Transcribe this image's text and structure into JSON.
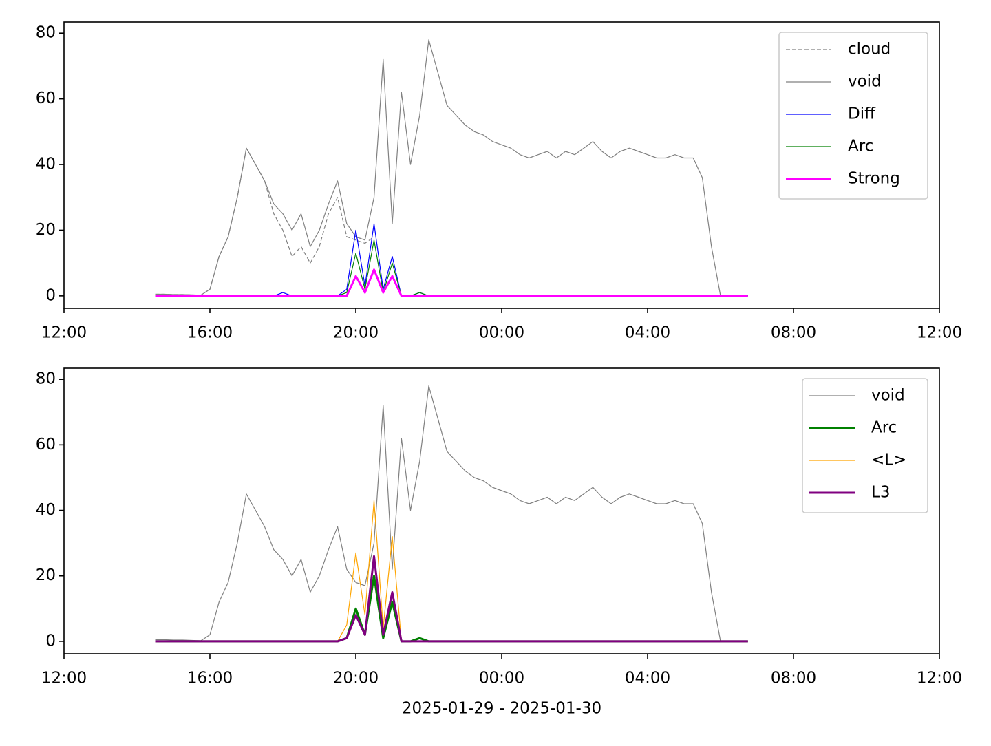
{
  "chart_data": [
    {
      "type": "line",
      "x": [
        14.5,
        14.75,
        15,
        15.25,
        15.5,
        15.75,
        16,
        16.25,
        16.5,
        16.75,
        17,
        17.25,
        17.5,
        17.75,
        18,
        18.25,
        18.5,
        18.75,
        19,
        19.25,
        19.5,
        19.75,
        20,
        20.25,
        20.5,
        20.75,
        21,
        21.25,
        21.5,
        21.75,
        22,
        22.25,
        22.5,
        22.75,
        23,
        23.25,
        23.5,
        23.75,
        24,
        24.25,
        24.5,
        24.75,
        25,
        25.25,
        25.5,
        25.75,
        26,
        26.25,
        26.5,
        26.75,
        27,
        27.25,
        27.5,
        27.75,
        28,
        28.25,
        28.5,
        28.75,
        29,
        29.25,
        29.5,
        29.75,
        30,
        30.25,
        30.5,
        30.75
      ],
      "xlim": [
        12,
        36
      ],
      "xticks": [
        {
          "value": 12,
          "label": "12:00"
        },
        {
          "value": 16,
          "label": "16:00"
        },
        {
          "value": 20,
          "label": "20:00"
        },
        {
          "value": 24,
          "label": "00:00"
        },
        {
          "value": 28,
          "label": "04:00"
        },
        {
          "value": 32,
          "label": "08:00"
        },
        {
          "value": 36,
          "label": "12:00"
        }
      ],
      "ylim": [
        -3.8,
        83.4
      ],
      "yticks": [
        0,
        20,
        40,
        60,
        80
      ],
      "legend": "upper right",
      "series": [
        {
          "name": "cloud",
          "color": "#808080",
          "width": 1.2,
          "linestyle": "dashed",
          "values": [
            0.5,
            0.5,
            0.4,
            0.4,
            0.3,
            0.2,
            2,
            12,
            18,
            30,
            45,
            40,
            35,
            25,
            20,
            12,
            15,
            10,
            15,
            25,
            30,
            18,
            17,
            16,
            18,
            null,
            null,
            null,
            null,
            null,
            null,
            null,
            null,
            null,
            null,
            null,
            null,
            null,
            null,
            null,
            null,
            null,
            null,
            null,
            null,
            null,
            null,
            null,
            null,
            null,
            null,
            null,
            null,
            null,
            null,
            null,
            null,
            null,
            null,
            null,
            null,
            null,
            null,
            null,
            null,
            null
          ]
        },
        {
          "name": "void",
          "color": "#808080",
          "width": 1.2,
          "linestyle": "solid",
          "values": [
            0.5,
            0.5,
            0.4,
            0.4,
            0.3,
            0.2,
            2,
            12,
            18,
            30,
            45,
            40,
            35,
            28,
            25,
            20,
            25,
            15,
            20,
            28,
            35,
            22,
            18,
            17,
            30,
            72,
            22,
            62,
            40,
            55,
            78,
            68,
            58,
            55,
            52,
            50,
            49,
            47,
            46,
            45,
            43,
            42,
            43,
            44,
            42,
            44,
            43,
            45,
            47,
            44,
            42,
            44,
            45,
            44,
            43,
            42,
            42,
            43,
            42,
            42,
            36,
            15,
            0,
            0,
            0,
            0
          ]
        },
        {
          "name": "Diff",
          "color": "#0000ff",
          "width": 1.2,
          "linestyle": "solid",
          "values": [
            0,
            0,
            0,
            0,
            0,
            0,
            0,
            0,
            0,
            0,
            0,
            0,
            0,
            0,
            1,
            0,
            0,
            0,
            0,
            0,
            0,
            2,
            20,
            3,
            22,
            2,
            12,
            0,
            0,
            1,
            0,
            0,
            0,
            0,
            0,
            0,
            0,
            0,
            0,
            0,
            0,
            0,
            0,
            0,
            0,
            0,
            0,
            0,
            0,
            0,
            0,
            0,
            0,
            0,
            0,
            0,
            0,
            0,
            0,
            0,
            0,
            0,
            0,
            0,
            0,
            0
          ]
        },
        {
          "name": "Arc",
          "color": "#008000",
          "width": 1.2,
          "linestyle": "solid",
          "values": [
            0,
            0,
            0,
            0,
            0,
            0,
            0,
            0,
            0,
            0,
            0,
            0,
            0,
            0,
            0,
            0,
            0,
            0,
            0,
            0,
            0,
            1,
            13,
            2,
            17,
            1,
            10,
            0,
            0,
            1,
            0,
            0,
            0,
            0,
            0,
            0,
            0,
            0,
            0,
            0,
            0,
            0,
            0,
            0,
            0,
            0,
            0,
            0,
            0,
            0,
            0,
            0,
            0,
            0,
            0,
            0,
            0,
            0,
            0,
            0,
            0,
            0,
            0,
            0,
            0,
            0
          ]
        },
        {
          "name": "Strong",
          "color": "#ff00ff",
          "width": 3,
          "linestyle": "solid",
          "values": [
            0,
            0,
            0,
            0,
            0,
            0,
            0,
            0,
            0,
            0,
            0,
            0,
            0,
            0,
            0,
            0,
            0,
            0,
            0,
            0,
            0,
            0,
            6,
            1,
            8,
            1,
            6,
            0,
            0,
            0,
            0,
            0,
            0,
            0,
            0,
            0,
            0,
            0,
            0,
            0,
            0,
            0,
            0,
            0,
            0,
            0,
            0,
            0,
            0,
            0,
            0,
            0,
            0,
            0,
            0,
            0,
            0,
            0,
            0,
            0,
            0,
            0,
            0,
            0,
            0,
            0
          ]
        }
      ]
    },
    {
      "type": "line",
      "x": [
        14.5,
        14.75,
        15,
        15.25,
        15.5,
        15.75,
        16,
        16.25,
        16.5,
        16.75,
        17,
        17.25,
        17.5,
        17.75,
        18,
        18.25,
        18.5,
        18.75,
        19,
        19.25,
        19.5,
        19.75,
        20,
        20.25,
        20.5,
        20.75,
        21,
        21.25,
        21.5,
        21.75,
        22,
        22.25,
        22.5,
        22.75,
        23,
        23.25,
        23.5,
        23.75,
        24,
        24.25,
        24.5,
        24.75,
        25,
        25.25,
        25.5,
        25.75,
        26,
        26.25,
        26.5,
        26.75,
        27,
        27.25,
        27.5,
        27.75,
        28,
        28.25,
        28.5,
        28.75,
        29,
        29.25,
        29.5,
        29.75,
        30,
        30.25,
        30.5,
        30.75
      ],
      "xlim": [
        12,
        36
      ],
      "xticks": [
        {
          "value": 12,
          "label": "12:00"
        },
        {
          "value": 16,
          "label": "16:00"
        },
        {
          "value": 20,
          "label": "20:00"
        },
        {
          "value": 24,
          "label": "00:00"
        },
        {
          "value": 28,
          "label": "04:00"
        },
        {
          "value": 32,
          "label": "08:00"
        },
        {
          "value": 36,
          "label": "12:00"
        }
      ],
      "xlabel": "2025-01-29 - 2025-01-30",
      "ylim": [
        -3.8,
        83.4
      ],
      "yticks": [
        0,
        20,
        40,
        60,
        80
      ],
      "legend": "upper right",
      "series": [
        {
          "name": "void",
          "color": "#808080",
          "width": 1.2,
          "linestyle": "solid",
          "values": [
            0.5,
            0.5,
            0.4,
            0.4,
            0.3,
            0.2,
            2,
            12,
            18,
            30,
            45,
            40,
            35,
            28,
            25,
            20,
            25,
            15,
            20,
            28,
            35,
            22,
            18,
            17,
            30,
            72,
            22,
            62,
            40,
            55,
            78,
            68,
            58,
            55,
            52,
            50,
            49,
            47,
            46,
            45,
            43,
            42,
            43,
            44,
            42,
            44,
            43,
            45,
            47,
            44,
            42,
            44,
            45,
            44,
            43,
            42,
            42,
            43,
            42,
            42,
            36,
            15,
            0,
            0,
            0,
            0
          ]
        },
        {
          "name": "Arc",
          "color": "#008000",
          "width": 3,
          "linestyle": "solid",
          "values": [
            0,
            0,
            0,
            0,
            0,
            0,
            0,
            0,
            0,
            0,
            0,
            0,
            0,
            0,
            0,
            0,
            0,
            0,
            0,
            0,
            0,
            1,
            10,
            2,
            20,
            1,
            12,
            0,
            0,
            1,
            0,
            0,
            0,
            0,
            0,
            0,
            0,
            0,
            0,
            0,
            0,
            0,
            0,
            0,
            0,
            0,
            0,
            0,
            0,
            0,
            0,
            0,
            0,
            0,
            0,
            0,
            0,
            0,
            0,
            0,
            0,
            0,
            0,
            0,
            0,
            0
          ]
        },
        {
          "name": "<L>",
          "color": "#ffa500",
          "width": 1.2,
          "linestyle": "solid",
          "values": [
            0,
            0,
            0,
            0,
            0,
            0,
            0,
            0,
            0,
            0,
            0,
            0,
            0,
            0,
            0,
            0,
            0,
            0,
            0,
            0,
            0,
            5,
            27,
            8,
            43,
            4,
            32,
            0,
            0,
            0,
            0,
            0,
            0,
            0,
            0,
            0,
            0,
            0,
            0,
            0,
            0,
            0,
            0,
            0,
            0,
            0,
            0,
            0,
            0,
            0,
            0,
            0,
            0,
            0,
            0,
            0,
            0,
            0,
            0,
            0,
            0,
            0,
            0,
            0,
            0,
            0
          ]
        },
        {
          "name": "L3",
          "color": "#800080",
          "width": 3,
          "linestyle": "solid",
          "values": [
            0,
            0,
            0,
            0,
            0,
            0,
            0,
            0,
            0,
            0,
            0,
            0,
            0,
            0,
            0,
            0,
            0,
            0,
            0,
            0,
            0,
            1,
            8,
            2,
            26,
            2,
            15,
            0,
            0,
            0,
            0,
            0,
            0,
            0,
            0,
            0,
            0,
            0,
            0,
            0,
            0,
            0,
            0,
            0,
            0,
            0,
            0,
            0,
            0,
            0,
            0,
            0,
            0,
            0,
            0,
            0,
            0,
            0,
            0,
            0,
            0,
            0,
            0,
            0,
            0,
            0
          ]
        }
      ]
    }
  ]
}
